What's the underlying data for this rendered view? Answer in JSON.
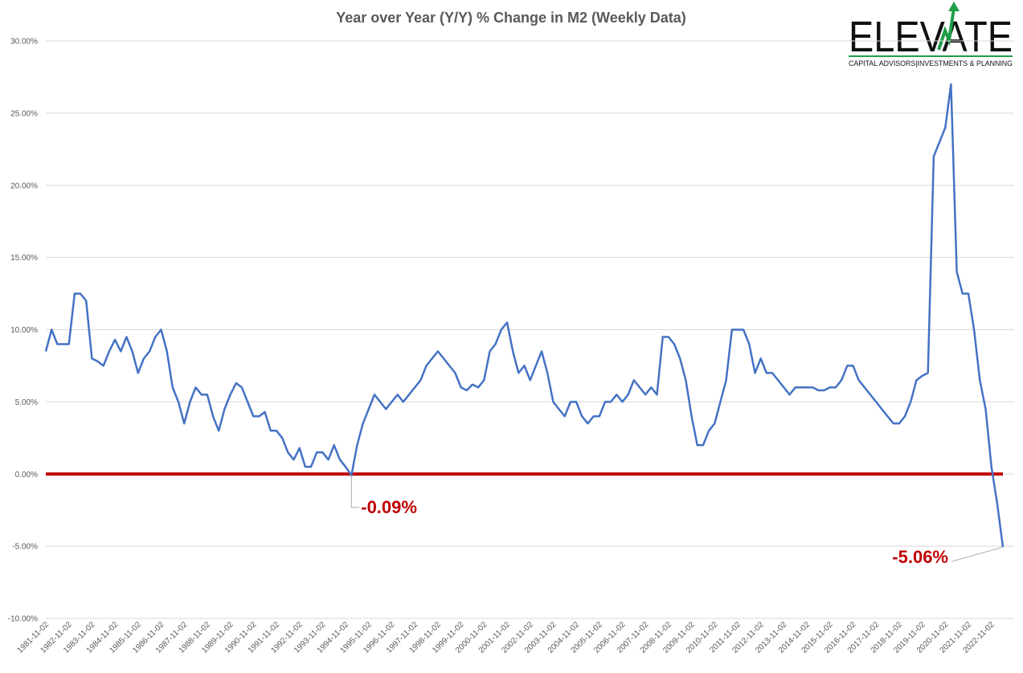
{
  "chart_data": {
    "type": "line",
    "title": "Year over Year (Y/Y) % Change in M2 (Weekly Data)",
    "logo": {
      "name": "ELEVATE",
      "tagline": "CAPITAL ADVISORS|INVESTMENTS & PLANNING"
    },
    "categories": [
      "1981-11-02",
      null,
      null,
      null,
      "1982-11-02",
      null,
      null,
      null,
      "1983-11-02",
      null,
      null,
      null,
      "1984-11-02",
      null,
      null,
      null,
      "1985-11-02",
      null,
      null,
      null,
      "1986-11-02",
      null,
      null,
      null,
      "1987-11-02",
      null,
      null,
      null,
      "1988-11-02",
      null,
      null,
      null,
      "1989-11-02",
      null,
      null,
      null,
      "1990-11-02",
      null,
      null,
      null,
      "1991-11-02",
      null,
      null,
      null,
      "1992-11-02",
      null,
      null,
      null,
      "1993-11-02",
      null,
      null,
      null,
      "1994-11-02",
      null,
      null,
      null,
      "1995-11-02",
      null,
      null,
      null,
      "1996-11-02",
      null,
      null,
      null,
      "1997-11-02",
      null,
      null,
      null,
      "1998-11-02",
      null,
      null,
      null,
      "1999-11-02",
      null,
      null,
      null,
      "2000-11-02",
      null,
      null,
      null,
      "2001-11-02",
      null,
      null,
      null,
      "2002-11-02",
      null,
      null,
      null,
      "2003-11-02",
      null,
      null,
      null,
      "2004-11-02",
      null,
      null,
      null,
      "2005-11-02",
      null,
      null,
      null,
      "2006-11-02",
      null,
      null,
      null,
      "2007-11-02",
      null,
      null,
      null,
      "2008-11-02",
      null,
      null,
      null,
      "2009-11-02",
      null,
      null,
      null,
      "2010-11-02",
      null,
      null,
      null,
      "2011-11-02",
      null,
      null,
      null,
      "2012-11-02",
      null,
      null,
      null,
      "2013-11-02",
      null,
      null,
      null,
      "2014-11-02",
      null,
      null,
      null,
      "2015-11-02",
      null,
      null,
      null,
      "2016-11-02",
      null,
      null,
      null,
      "2017-11-02",
      null,
      null,
      null,
      "2018-11-02",
      null,
      null,
      null,
      "2019-11-02",
      null,
      null,
      null,
      "2020-11-02",
      null,
      null,
      null,
      "2021-11-02",
      null,
      null,
      null,
      "2022-11-02",
      null,
      null
    ],
    "series": [
      {
        "color": "#4472c4",
        "values": [
          8.5,
          10.0,
          9.0,
          9.0,
          9.0,
          12.5,
          12.5,
          12.0,
          8.0,
          7.8,
          7.5,
          8.5,
          9.3,
          8.5,
          9.5,
          8.5,
          7.0,
          8.0,
          8.5,
          9.5,
          10.0,
          8.5,
          6.0,
          5.0,
          3.5,
          5.0,
          6.0,
          5.5,
          5.5,
          4.0,
          3.0,
          4.5,
          5.5,
          6.3,
          6.0,
          5.0,
          4.0,
          4.0,
          4.3,
          3.0,
          3.0,
          2.5,
          1.5,
          1.0,
          1.8,
          0.5,
          0.5,
          1.5,
          1.5,
          1.0,
          2.0,
          1.0,
          0.5,
          -0.09,
          2.0,
          3.5,
          4.5,
          5.5,
          5.0,
          4.5,
          5.0,
          5.5,
          5.0,
          5.5,
          6.0,
          6.5,
          7.5,
          8.0,
          8.5,
          8.0,
          7.5,
          7.0,
          6.0,
          5.8,
          6.2,
          6.0,
          6.5,
          8.5,
          9.0,
          10.0,
          10.5,
          8.5,
          7.0,
          7.5,
          6.5,
          7.5,
          8.5,
          7.0,
          5.0,
          4.5,
          4.0,
          5.0,
          5.0,
          4.0,
          3.5,
          4.0,
          4.0,
          5.0,
          5.0,
          5.5,
          5.0,
          5.5,
          6.5,
          6.0,
          5.5,
          6.0,
          5.5,
          9.5,
          9.5,
          9.0,
          8.0,
          6.5,
          4.0,
          2.0,
          2.0,
          3.0,
          3.5,
          5.0,
          6.5,
          10.0,
          10.0,
          10.0,
          9.0,
          7.0,
          8.0,
          7.0,
          7.0,
          6.5,
          6.0,
          5.5,
          6.0,
          6.0,
          6.0,
          6.0,
          5.8,
          5.8,
          6.0,
          6.0,
          6.5,
          7.5,
          7.5,
          6.5,
          6.0,
          5.5,
          5.0,
          4.5,
          4.0,
          3.5,
          3.5,
          4.0,
          5.0,
          6.5,
          6.8,
          7.0,
          22.0,
          23.0,
          24.0,
          27.0,
          14.0,
          12.5,
          12.5,
          10.0,
          6.5,
          4.5,
          0.5,
          -2.0,
          -5.06
        ],
        "value_labels": [
          null,
          null,
          null,
          null,
          null,
          null,
          null,
          null,
          null,
          null,
          null,
          null,
          null,
          null,
          null,
          null,
          null,
          null,
          null,
          null,
          null,
          null,
          null,
          null,
          null,
          null,
          null,
          null,
          null,
          null,
          null,
          null,
          null,
          null,
          null,
          null,
          null,
          null,
          null,
          null,
          null,
          null,
          null,
          null,
          null,
          null,
          null,
          null,
          null,
          null,
          null,
          null,
          null,
          "-0.09%",
          null,
          null,
          null,
          null,
          null,
          null,
          null,
          null,
          null,
          null,
          null,
          null,
          null,
          null,
          null,
          null,
          null,
          null,
          null,
          null,
          null,
          null,
          null,
          null,
          null,
          null,
          null,
          null,
          null,
          null,
          null,
          null,
          null,
          null,
          null,
          null,
          null,
          null,
          null,
          null,
          null,
          null,
          null,
          null,
          null,
          null,
          null,
          null,
          null,
          null,
          null,
          null,
          null,
          null,
          null,
          null,
          null,
          null,
          null,
          null,
          null,
          null,
          null,
          null,
          null,
          null,
          null,
          null,
          null,
          null,
          null,
          null,
          null,
          null,
          null,
          null,
          null,
          null,
          null,
          null,
          null,
          null,
          null,
          null,
          null,
          null,
          null,
          null,
          null,
          null,
          null,
          null,
          null,
          null,
          null,
          null,
          null,
          null,
          null,
          null,
          null,
          null,
          null,
          null,
          null,
          null,
          null,
          null,
          null,
          null,
          null,
          null,
          "-5.06%"
        ]
      }
    ],
    "ylim": [
      -10,
      30
    ],
    "yticks": [
      {
        "value": -10,
        "label": "-10.00%"
      },
      {
        "value": -5,
        "label": "-5.00%"
      },
      {
        "value": 0,
        "label": "0.00%"
      },
      {
        "value": 5,
        "label": "5.00%"
      },
      {
        "value": 10,
        "label": "10.00%"
      },
      {
        "value": 15,
        "label": "15.00%"
      },
      {
        "value": 20,
        "label": "20.00%"
      },
      {
        "value": 25,
        "label": "25.00%"
      },
      {
        "value": 30,
        "label": "30.00%"
      }
    ],
    "grid": true,
    "reference_line": {
      "value": 0,
      "color": "#c00000"
    },
    "annotation_color": "#c00000"
  }
}
